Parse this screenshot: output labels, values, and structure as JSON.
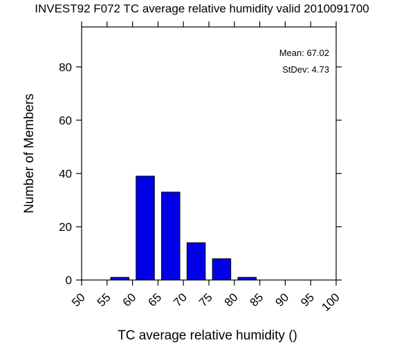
{
  "chart_data": {
    "type": "bar",
    "title": "INVEST92 F072 TC average relative humidity valid 2010091700",
    "xlabel": "TC average relative humidity ()",
    "ylabel": "Number of Members",
    "xlim": [
      50,
      100
    ],
    "ylim": [
      0,
      95
    ],
    "x_ticks": [
      50,
      55,
      60,
      65,
      70,
      75,
      80,
      85,
      90,
      95,
      100
    ],
    "y_ticks": [
      0,
      20,
      40,
      60,
      80
    ],
    "bins": [
      {
        "center": 57.5,
        "value": 1
      },
      {
        "center": 62.5,
        "value": 39
      },
      {
        "center": 67.5,
        "value": 33
      },
      {
        "center": 72.5,
        "value": 14
      },
      {
        "center": 77.5,
        "value": 8
      },
      {
        "center": 82.5,
        "value": 1
      }
    ],
    "bin_width": 5,
    "bar_color": "#0000e6",
    "stats": {
      "mean": "Mean: 67.02",
      "stdev": "StDev: 4.73"
    },
    "grid": false
  }
}
